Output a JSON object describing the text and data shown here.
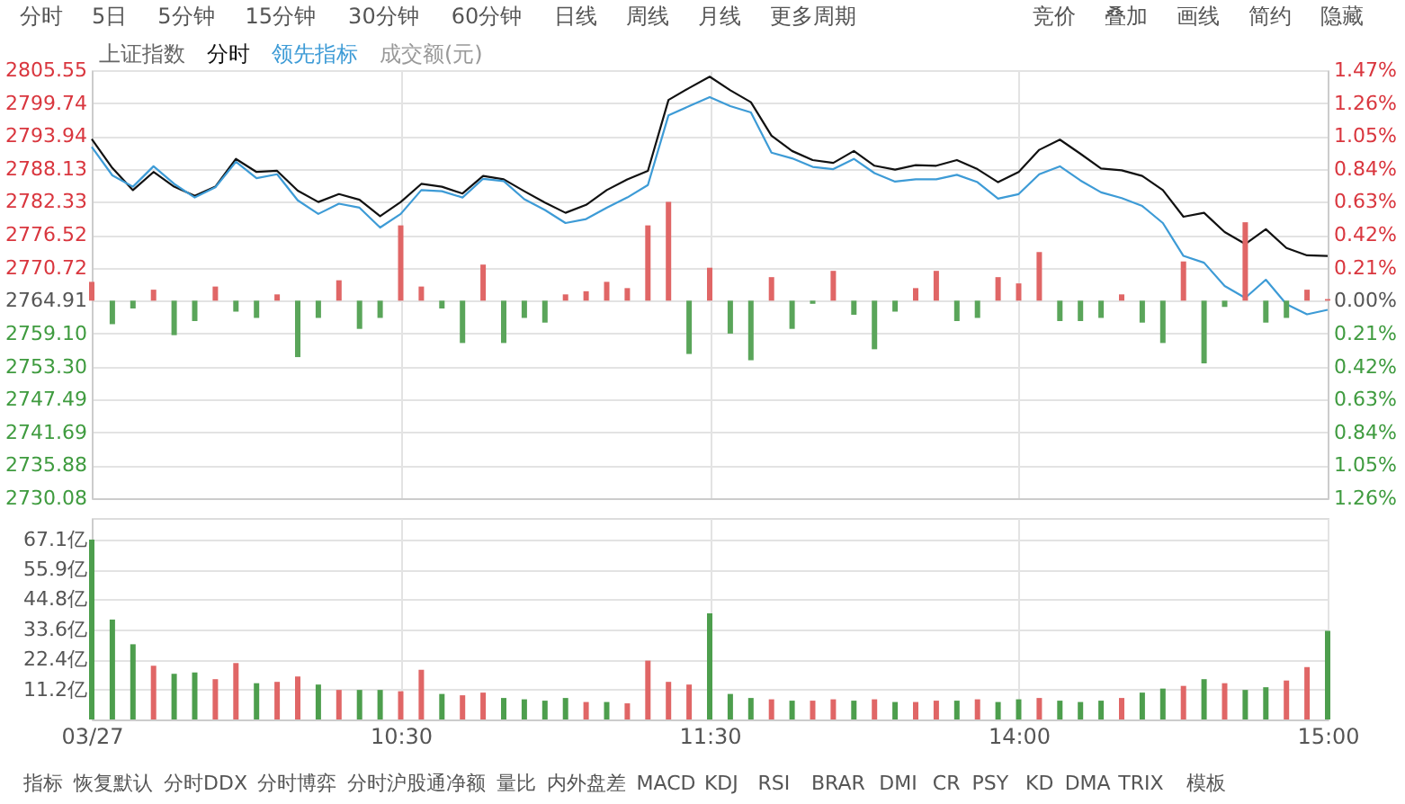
{
  "chart_data": [
    {
      "type": "line",
      "title": "上证指数",
      "legend": "top left",
      "grid": true,
      "tick_labels": "y",
      "annotations": [
        "成交额(元)",
        "分时",
        "5日",
        "5分钟",
        "15分钟",
        "30分钟",
        "60分钟",
        "日线",
        "周线",
        "月线",
        "更多周期",
        "竞价",
        "叠加",
        "画线",
        "简约",
        "隐藏"
      ],
      "categories": [
        null,
        null,
        null,
        null,
        null,
        null,
        null,
        null,
        null,
        null,
        null,
        null,
        null,
        null,
        null,
        null,
        null,
        null,
        null,
        null,
        null,
        null,
        null,
        null,
        null,
        null,
        null,
        null,
        null,
        null,
        null,
        null,
        null,
        null,
        null,
        null,
        null,
        null,
        null,
        null,
        null,
        null,
        null,
        null,
        null,
        null,
        null,
        null,
        null,
        null,
        null,
        null,
        null,
        null,
        null,
        null,
        null,
        null,
        null,
        null,
        null
      ],
      "ylim": [
        2730.08,
        2805.55
      ],
      "yticks": [
        2805.55,
        2799.74,
        2793.94,
        2788.13,
        2782.33,
        2776.52,
        2770.72,
        2764.91,
        {
          "value": 2759.1,
          "label": "2759.10"
        },
        {
          "value": 2753.3,
          "label": "2753.30"
        },
        2747.49,
        2741.69,
        2735.88,
        2730.08
      ],
      "y2lim": [
        -1.26,
        1.47
      ],
      "y2ticks": [
        {
          "value": 1.47,
          "label": "1.47%"
        },
        {
          "value": 1.26,
          "label": "1.26%"
        },
        {
          "value": 1.05,
          "label": "1.05%"
        },
        {
          "value": 0.84,
          "label": "0.84%"
        },
        {
          "value": 0.63,
          "label": "0.63%"
        },
        {
          "value": 0.42,
          "label": "0.42%"
        },
        {
          "value": 0.21,
          "label": "0.21%"
        },
        {
          "value": 0,
          "label": "0.00%"
        },
        {
          "value": -0.21,
          "label": "0.21%"
        },
        {
          "value": -0.42,
          "label": "0.42%"
        },
        {
          "value": -0.63,
          "label": "0.63%"
        },
        {
          "value": -0.84,
          "label": "0.84%"
        },
        {
          "value": -1.05,
          "label": "1.05%"
        },
        {
          "value": -1.26,
          "label": "1.26%"
        }
      ],
      "series": [
        {
          "name": "分时",
          "type": "line",
          "color": "#111111",
          "values": [
            2793.4,
            2788.3,
            2784.4,
            2787.6,
            2785.0,
            2783.4,
            2785.0,
            2789.9,
            2787.6,
            2787.8,
            2784.3,
            2782.3,
            2783.7,
            2782.7,
            2779.8,
            2782.3,
            2785.5,
            2785.0,
            2783.8,
            2786.9,
            2786.3,
            2784.2,
            2782.2,
            2780.4,
            2781.8,
            2784.4,
            2786.3,
            2787.8,
            2800.3,
            2802.4,
            2804.4,
            2802.0,
            2799.9,
            2794.0,
            2791.3,
            2789.7,
            2789.2,
            2791.3,
            2788.7,
            2788.0,
            2788.8,
            2788.7,
            2789.7,
            2788.1,
            2785.8,
            2787.6,
            2791.5,
            2793.3,
            2790.8,
            2788.2,
            2787.9,
            2786.9,
            2784.4,
            2779.7,
            2780.4,
            2777.0,
            2774.9,
            2777.5,
            2774.2,
            2772.9,
            2772.8
          ]
        },
        {
          "name": "领先指标",
          "type": "line",
          "color": "#3d9bd6",
          "values": [
            2792.0,
            2787.0,
            2785.0,
            2788.6,
            2785.5,
            2783.1,
            2784.9,
            2789.4,
            2786.5,
            2787.2,
            2782.6,
            2780.2,
            2782.0,
            2781.3,
            2777.8,
            2780.2,
            2784.4,
            2784.2,
            2783.1,
            2786.4,
            2786.0,
            2782.8,
            2780.9,
            2778.6,
            2779.3,
            2781.3,
            2783.1,
            2785.3,
            2797.6,
            2799.2,
            2800.8,
            2799.2,
            2798.1,
            2791.0,
            2790.0,
            2788.5,
            2788.1,
            2789.9,
            2787.4,
            2785.9,
            2786.3,
            2786.3,
            2787.1,
            2785.8,
            2782.9,
            2783.7,
            2787.2,
            2788.6,
            2786.1,
            2784.0,
            2783.0,
            2781.6,
            2778.6,
            2772.8,
            2771.6,
            2767.5,
            2765.4,
            2768.6,
            2764.3,
            2762.5,
            2763.3
          ]
        },
        {
          "type": "bar",
          "axis": "y2",
          "values": [
            0.12,
            -0.15,
            -0.05,
            0.07,
            -0.22,
            -0.13,
            0.09,
            -0.07,
            -0.11,
            0.04,
            -0.36,
            -0.11,
            0.13,
            -0.18,
            -0.11,
            0.48,
            0.09,
            -0.05,
            -0.27,
            0.23,
            -0.27,
            -0.11,
            -0.14,
            0.04,
            0.06,
            0.12,
            0.08,
            0.48,
            0.63,
            -0.34,
            0.21,
            -0.21,
            -0.38,
            0.15,
            -0.18,
            -0.02,
            0.19,
            -0.09,
            -0.31,
            -0.07,
            0.08,
            0.19,
            -0.13,
            -0.11,
            0.15,
            0.11,
            0.31,
            -0.13,
            -0.13,
            -0.11,
            0.04,
            -0.14,
            -0.27,
            0.25,
            -0.4,
            -0.04,
            0.5,
            -0.14,
            -0.11,
            0.07,
            0.01
          ],
          "colors": [
            "#e06666",
            "#5aa55a",
            "#5aa55a",
            "#e06666",
            "#5aa55a",
            "#5aa55a",
            "#e06666",
            "#5aa55a",
            "#5aa55a",
            "#e06666",
            "#5aa55a",
            "#5aa55a",
            "#e06666",
            "#5aa55a",
            "#5aa55a",
            "#e06666",
            "#e06666",
            "#5aa55a",
            "#5aa55a",
            "#e06666",
            "#5aa55a",
            "#5aa55a",
            "#5aa55a",
            "#e06666",
            "#e06666",
            "#e06666",
            "#e06666",
            "#e06666",
            "#e06666",
            "#5aa55a",
            "#e06666",
            "#5aa55a",
            "#5aa55a",
            "#e06666",
            "#5aa55a",
            "#5aa55a",
            "#e06666",
            "#5aa55a",
            "#5aa55a",
            "#5aa55a",
            "#e06666",
            "#e06666",
            "#5aa55a",
            "#5aa55a",
            "#e06666",
            "#e06666",
            "#e06666",
            "#5aa55a",
            "#5aa55a",
            "#5aa55a",
            "#e06666",
            "#5aa55a",
            "#5aa55a",
            "#e06666",
            "#5aa55a",
            "#5aa55a",
            "#e06666",
            "#5aa55a",
            "#5aa55a",
            "#e06666",
            "#e06666"
          ]
        }
      ]
    },
    {
      "type": "bar",
      "grid": true,
      "annotations": [
        "指标",
        "恢复默认",
        "分时DDX",
        "分时博弈",
        "分时沪股通净额",
        "量比",
        "内外盘差",
        "MACD",
        "KDJ",
        "RSI",
        "BRAR",
        "DMI",
        "CR",
        "PSY",
        "KD",
        "DMA",
        "TRIX",
        "模板"
      ],
      "categories": [
        "03/27",
        null,
        null,
        null,
        null,
        null,
        null,
        null,
        null,
        null,
        null,
        null,
        null,
        null,
        null,
        "10:30",
        null,
        null,
        null,
        null,
        null,
        null,
        null,
        null,
        null,
        null,
        null,
        null,
        null,
        null,
        "11:30",
        null,
        null,
        null,
        null,
        null,
        null,
        null,
        null,
        null,
        null,
        null,
        null,
        null,
        null,
        "14:00",
        null,
        null,
        null,
        null,
        null,
        null,
        null,
        null,
        null,
        null,
        null,
        null,
        null,
        null,
        "15:00"
      ],
      "ylim": [
        0,
        75
      ],
      "yticks": [
        {
          "value": 11.2,
          "label": "11.2亿"
        },
        {
          "value": 22.4,
          "label": "22.4亿"
        },
        {
          "value": 33.6,
          "label": "33.6亿"
        },
        {
          "value": 44.8,
          "label": "44.8亿"
        },
        {
          "value": 55.9,
          "label": "55.9亿"
        },
        {
          "value": 67.1,
          "label": "67.1亿"
        }
      ],
      "values": [
        67.0,
        37.2,
        28.0,
        20.0,
        17.0,
        17.5,
        15.0,
        21.0,
        13.5,
        14.0,
        16.0,
        13.0,
        11.0,
        11.0,
        11.0,
        10.5,
        18.5,
        9.5,
        9.0,
        10.0,
        8.0,
        7.5,
        7.0,
        8.0,
        6.5,
        6.5,
        6.0,
        21.9,
        14.0,
        13.0,
        39.5,
        9.5,
        8.0,
        7.5,
        7.0,
        7.0,
        7.5,
        7.0,
        7.5,
        6.5,
        6.5,
        7.0,
        7.0,
        7.5,
        6.5,
        7.5,
        8.0,
        7.0,
        6.5,
        7.0,
        8.0,
        10.0,
        11.5,
        12.5,
        15.0,
        13.5,
        11.0,
        12.0,
        14.5,
        19.5,
        33.0
      ],
      "colors": [
        "#4d9e4d",
        "#4d9e4d",
        "#4d9e4d",
        "#e06666",
        "#4d9e4d",
        "#4d9e4d",
        "#e06666",
        "#e06666",
        "#4d9e4d",
        "#e06666",
        "#e06666",
        "#4d9e4d",
        "#e06666",
        "#4d9e4d",
        "#4d9e4d",
        "#e06666",
        "#e06666",
        "#4d9e4d",
        "#e06666",
        "#e06666",
        "#4d9e4d",
        "#4d9e4d",
        "#4d9e4d",
        "#4d9e4d",
        "#e06666",
        "#4d9e4d",
        "#e06666",
        "#e06666",
        "#e06666",
        "#e06666",
        "#4d9e4d",
        "#4d9e4d",
        "#4d9e4d",
        "#e06666",
        "#4d9e4d",
        "#e06666",
        "#e06666",
        "#4d9e4d",
        "#e06666",
        "#4d9e4d",
        "#e06666",
        "#e06666",
        "#4d9e4d",
        "#e06666",
        "#4d9e4d",
        "#4d9e4d",
        "#e06666",
        "#4d9e4d",
        "#4d9e4d",
        "#4d9e4d",
        "#e06666",
        "#4d9e4d",
        "#4d9e4d",
        "#e06666",
        "#4d9e4d",
        "#e06666",
        "#4d9e4d",
        "#4d9e4d",
        "#e06666",
        "#e06666",
        "#4d9e4d"
      ]
    }
  ]
}
